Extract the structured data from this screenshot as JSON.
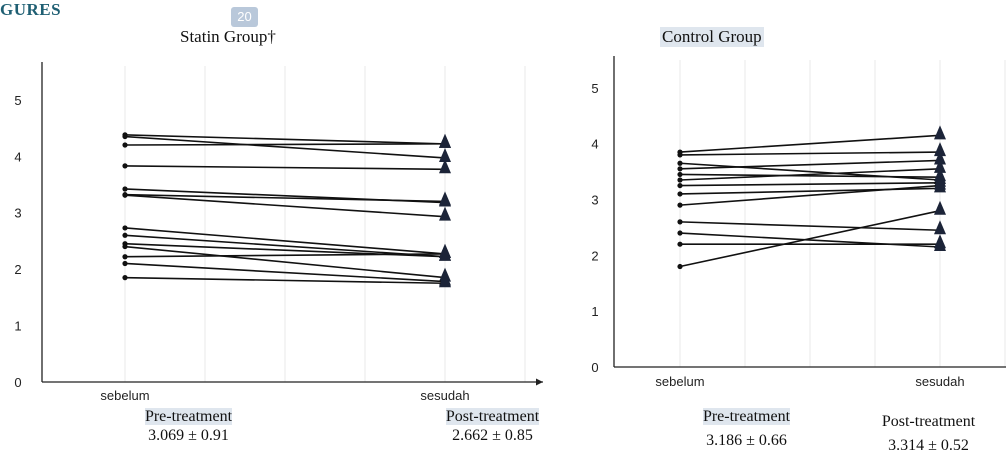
{
  "header": {
    "section_label": "GURES",
    "page_badge": "20"
  },
  "colors": {
    "section_label": "#1f5f73",
    "page_badge_bg": "#b9c8da",
    "highlight": "#dfe6ee",
    "marker": "#1c2438",
    "line": "#111111",
    "grid": "#e8e8e8"
  },
  "stats": {
    "statin_pre_label": "Pre-treatment",
    "statin_pre_value": "3.069 ± 0.91",
    "statin_post_label": "Post-treatment",
    "statin_post_value": "2.662 ± 0.85",
    "control_pre_label": "Pre-treatment",
    "control_pre_value": "3.186 ± 0.66",
    "control_post_label": "Post-treatment",
    "control_post_value": "3.314 ± 0.52"
  },
  "chart_data": [
    {
      "type": "line",
      "title": "Statin Group†",
      "categories": [
        "sebelum",
        "sesudah"
      ],
      "y_ticks": [
        0,
        1,
        2,
        3,
        4,
        5
      ],
      "ylim": [
        0,
        5.6
      ],
      "grid": true,
      "pre_marker": "circle",
      "post_marker": "triangle",
      "series": [
        {
          "values": [
            4.38,
            4.22
          ]
        },
        {
          "values": [
            4.35,
            3.97
          ]
        },
        {
          "values": [
            4.2,
            4.22
          ]
        },
        {
          "values": [
            3.83,
            3.77
          ]
        },
        {
          "values": [
            3.42,
            3.18
          ]
        },
        {
          "values": [
            3.32,
            3.2
          ]
        },
        {
          "values": [
            3.31,
            2.93
          ]
        },
        {
          "values": [
            2.73,
            2.27
          ]
        },
        {
          "values": [
            2.6,
            2.22
          ]
        },
        {
          "values": [
            2.45,
            2.22
          ]
        },
        {
          "values": [
            2.4,
            1.85
          ]
        },
        {
          "values": [
            2.22,
            2.27
          ]
        },
        {
          "values": [
            2.1,
            1.78
          ]
        },
        {
          "values": [
            1.85,
            1.75
          ]
        }
      ]
    },
    {
      "type": "line",
      "title": "Control Group",
      "categories": [
        "sebelum",
        "sesudah"
      ],
      "y_ticks": [
        0,
        1,
        2,
        3,
        4,
        5
      ],
      "ylim": [
        0,
        5.5
      ],
      "grid": true,
      "pre_marker": "circle",
      "post_marker": "triangle",
      "series": [
        {
          "values": [
            3.85,
            4.15
          ]
        },
        {
          "values": [
            3.8,
            3.85
          ]
        },
        {
          "values": [
            3.65,
            3.35
          ]
        },
        {
          "values": [
            3.55,
            3.7
          ]
        },
        {
          "values": [
            3.45,
            3.4
          ]
        },
        {
          "values": [
            3.35,
            3.55
          ]
        },
        {
          "values": [
            3.25,
            3.3
          ]
        },
        {
          "values": [
            3.1,
            3.2
          ]
        },
        {
          "values": [
            2.9,
            3.25
          ]
        },
        {
          "values": [
            2.6,
            2.45
          ]
        },
        {
          "values": [
            2.4,
            2.15
          ]
        },
        {
          "values": [
            2.2,
            2.2
          ]
        },
        {
          "values": [
            1.8,
            2.8
          ]
        }
      ]
    }
  ]
}
